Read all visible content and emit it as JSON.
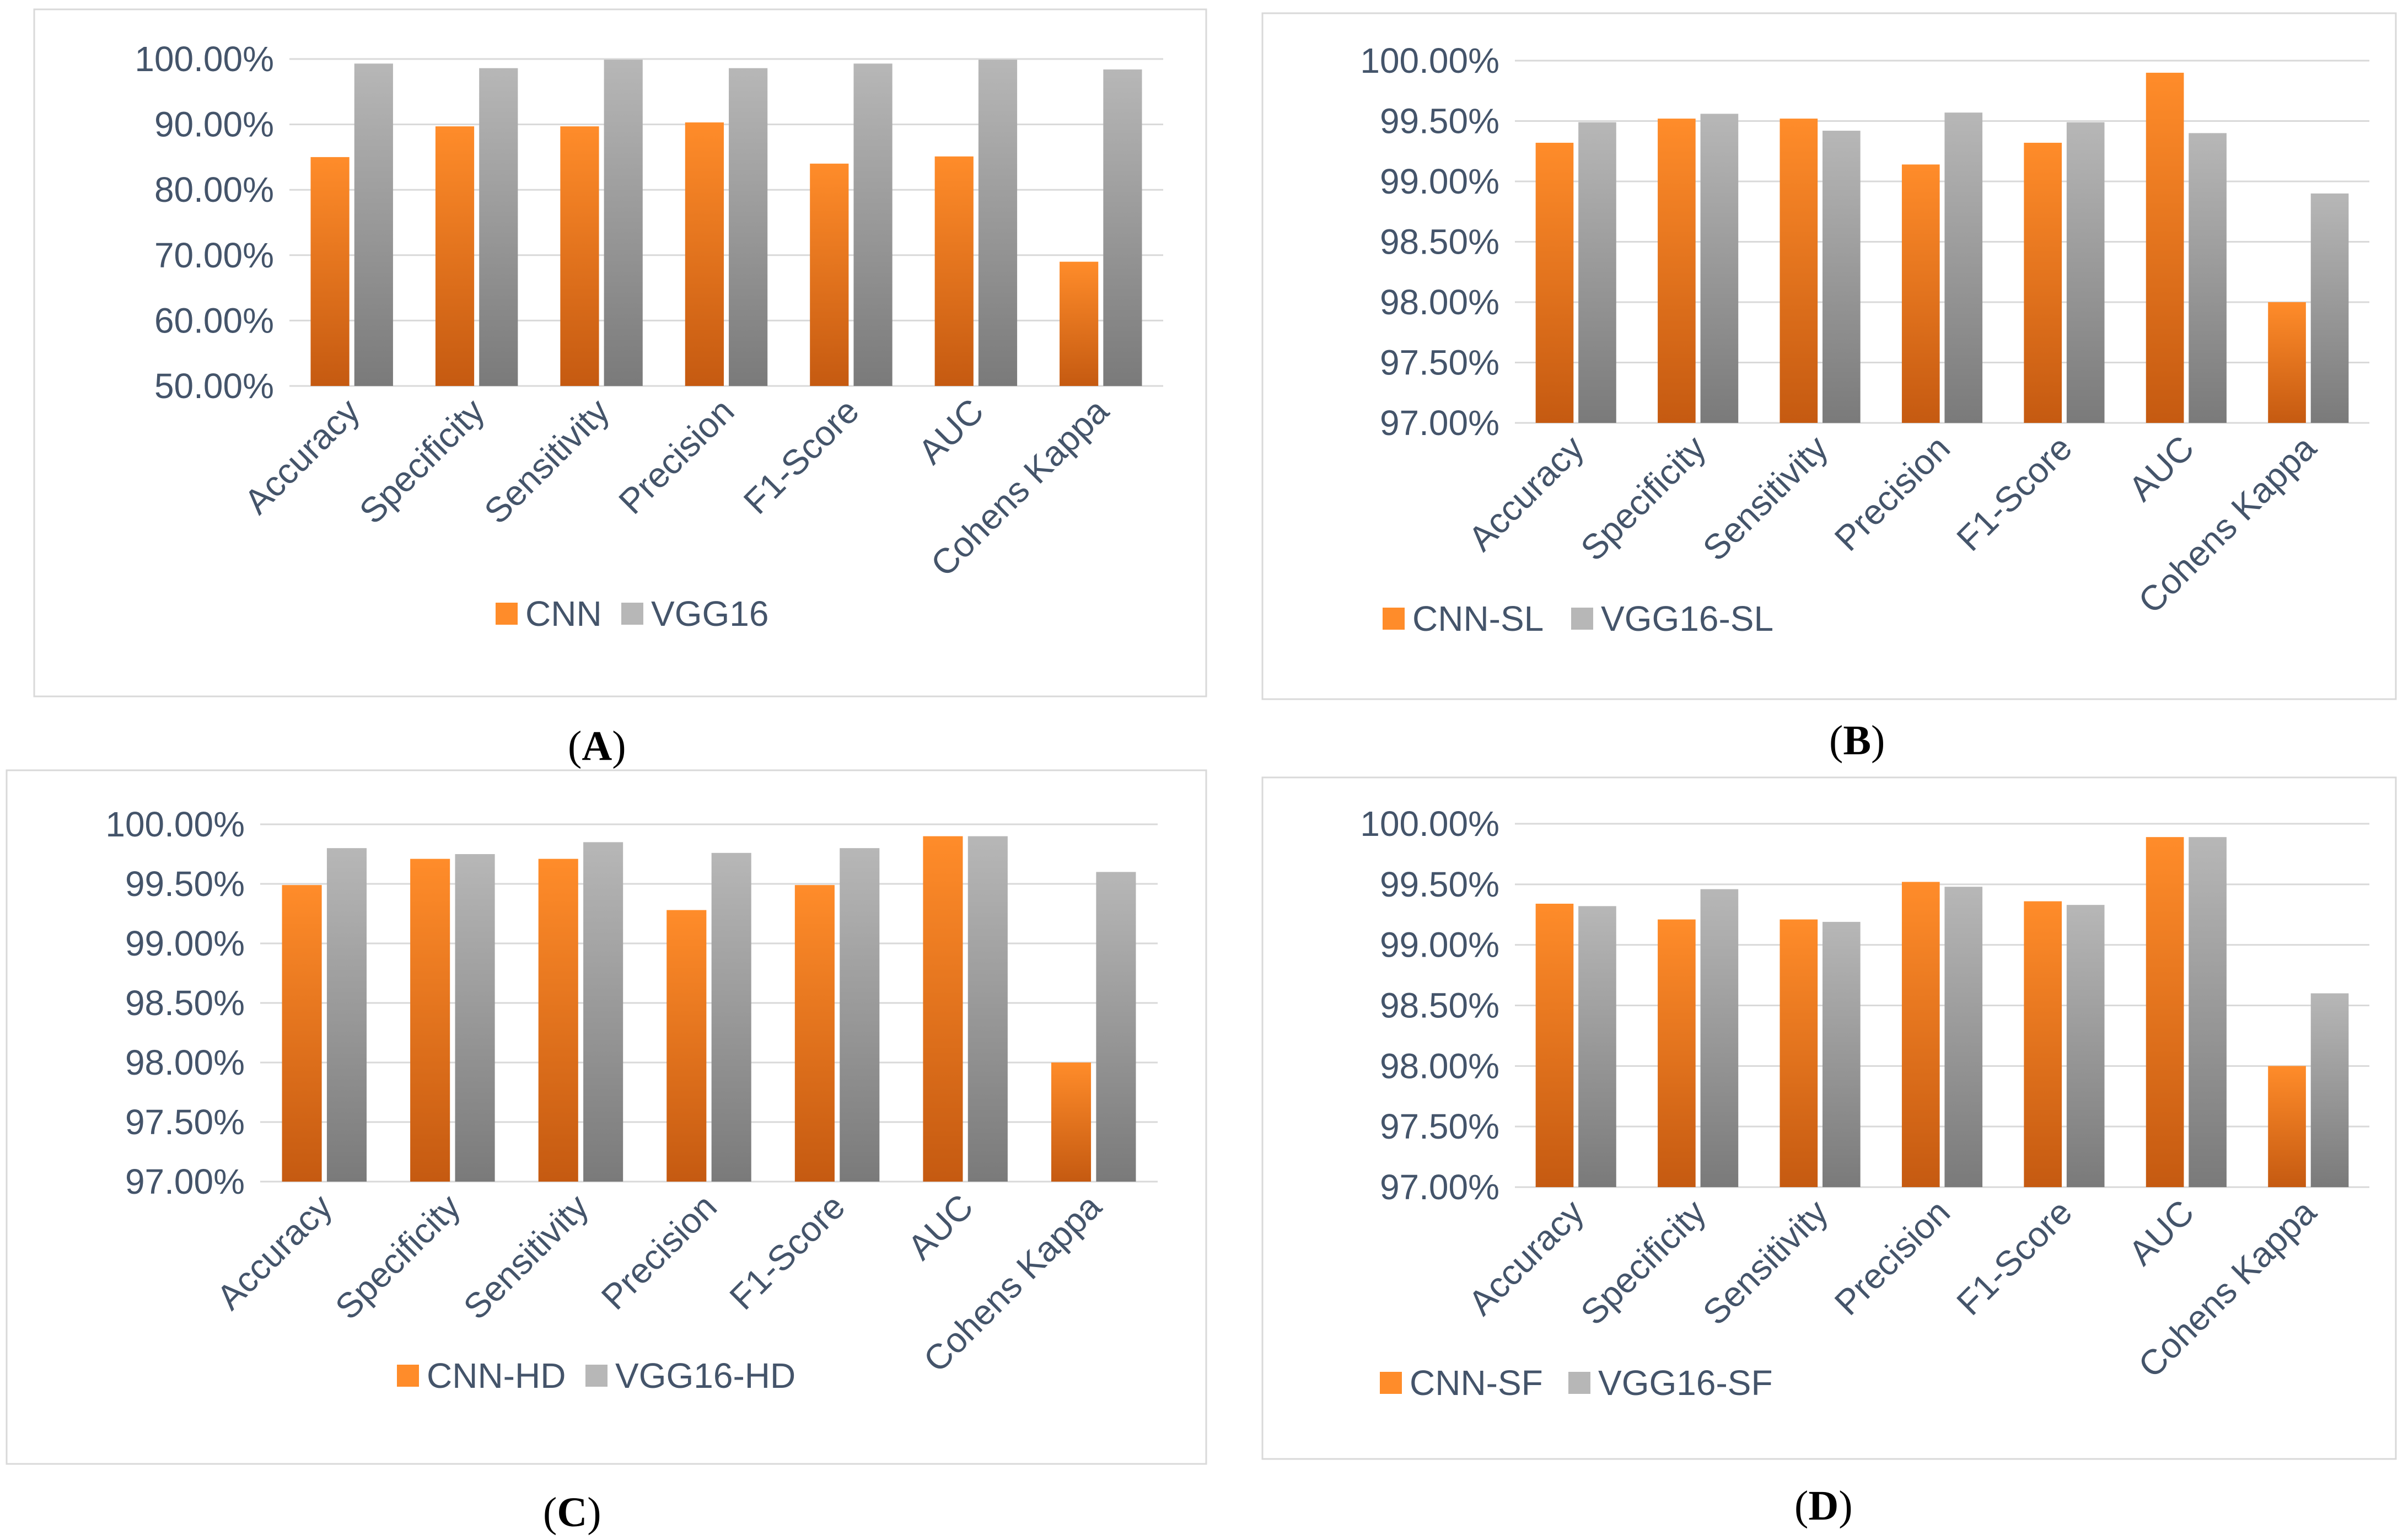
{
  "colors": {
    "cnn_light": "#ff8c2a",
    "cnn_dark": "#c55a11",
    "vgg_light": "#b7b7b7",
    "vgg_dark": "#7a7a7a"
  },
  "chart_data": [
    {
      "type": "bar",
      "panel": "A",
      "categories": [
        "Accuracy",
        "Specificity",
        "Sensitivity",
        "Precision",
        "F1-Score",
        "AUC",
        "Cohens Kappa"
      ],
      "series": [
        {
          "name": "CNN",
          "values": [
            85.0,
            89.7,
            89.7,
            90.3,
            84.0,
            85.1,
            69.0
          ]
        },
        {
          "name": "VGG16",
          "values": [
            99.3,
            98.6,
            99.9,
            98.6,
            99.3,
            99.9,
            98.4
          ]
        }
      ],
      "yticks": [
        "50.00%",
        "60.00%",
        "70.00%",
        "80.00%",
        "90.00%",
        "100.00%"
      ],
      "ylim": [
        50,
        100
      ],
      "grid": true,
      "legend": "bottom"
    },
    {
      "type": "bar",
      "panel": "B",
      "categories": [
        "Accuracy",
        "Specificity",
        "Sensitivity",
        "Precision",
        "F1-Score",
        "AUC",
        "Cohens Kappa"
      ],
      "series": [
        {
          "name": "CNN-SL",
          "values": [
            99.32,
            99.52,
            99.52,
            99.14,
            99.32,
            99.9,
            98.0
          ]
        },
        {
          "name": "VGG16-SL",
          "values": [
            99.49,
            99.56,
            99.42,
            99.57,
            99.49,
            99.4,
            98.9
          ]
        }
      ],
      "yticks": [
        "97.00%",
        "97.50%",
        "98.00%",
        "98.50%",
        "99.00%",
        "99.50%",
        "100.00%"
      ],
      "ylim": [
        97,
        100
      ],
      "grid": true,
      "legend": "bottom"
    },
    {
      "type": "bar",
      "panel": "C",
      "categories": [
        "Accuracy",
        "Specificity",
        "Sensitivity",
        "Precision",
        "F1-Score",
        "AUC",
        "Cohens Kappa"
      ],
      "series": [
        {
          "name": "CNN-HD",
          "values": [
            99.49,
            99.71,
            99.71,
            99.28,
            99.49,
            99.9,
            98.0
          ]
        },
        {
          "name": "VGG16-HD",
          "values": [
            99.8,
            99.75,
            99.85,
            99.76,
            99.8,
            99.9,
            99.6
          ]
        }
      ],
      "yticks": [
        "97.00%",
        "97.50%",
        "98.00%",
        "98.50%",
        "99.00%",
        "99.50%",
        "100.00%"
      ],
      "ylim": [
        97,
        100
      ],
      "grid": true,
      "legend": "bottom"
    },
    {
      "type": "bar",
      "panel": "D",
      "categories": [
        "Accuracy",
        "Specificity",
        "Sensitivity",
        "Precision",
        "F1-Score",
        "AUC",
        "Cohens Kappa"
      ],
      "series": [
        {
          "name": "CNN-SF",
          "values": [
            99.34,
            99.21,
            99.21,
            99.52,
            99.36,
            99.89,
            98.0
          ]
        },
        {
          "name": "VGG16-SF",
          "values": [
            99.32,
            99.46,
            99.19,
            99.48,
            99.33,
            99.89,
            98.6
          ]
        }
      ],
      "yticks": [
        "97.00%",
        "97.50%",
        "98.00%",
        "98.50%",
        "99.00%",
        "99.50%",
        "100.00%"
      ],
      "ylim": [
        97,
        100
      ],
      "grid": true,
      "legend": "bottom"
    }
  ],
  "captions": {
    "A": {
      "open": "(",
      "letter": "A",
      "close": ")"
    },
    "B": {
      "open": "(",
      "letter": "B",
      "close": ")"
    },
    "C": {
      "open": "(",
      "letter": "C",
      "close": ")"
    },
    "D": {
      "open": "(",
      "letter": "D",
      "close": ")"
    }
  }
}
